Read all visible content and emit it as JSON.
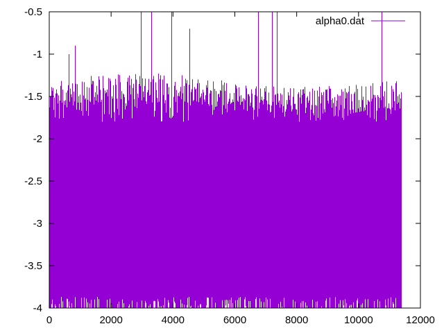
{
  "chart_data": {
    "type": "line",
    "title": "",
    "xlabel": "",
    "ylabel": "",
    "xlim": [
      0,
      12000
    ],
    "ylim": [
      -4,
      -0.5
    ],
    "xticks": [
      0,
      2000,
      4000,
      6000,
      8000,
      10000,
      12000
    ],
    "yticks": [
      -4,
      -3.5,
      -3,
      -2.5,
      -2,
      -1.5,
      -1,
      -0.5
    ],
    "xtick_labels": [
      "0",
      "2000",
      "4000",
      "6000",
      "8000",
      "10000",
      "12000"
    ],
    "ytick_labels": [
      "-4",
      "-3.5",
      "-3",
      "-2.5",
      "-2",
      "-1.5",
      "-1",
      "-0.5"
    ],
    "grid": false,
    "legend_position": "top-right",
    "series": [
      {
        "name": "alpha0.dat",
        "color": "#9400d3",
        "n_points": 11350,
        "x_range": [
          0,
          11350
        ],
        "dense_band": [
          -4,
          -1.8
        ],
        "typical_range": [
          -4,
          -1.3
        ],
        "spikes": [
          {
            "x": 620,
            "y": -1.0
          },
          {
            "x": 830,
            "y": -0.9
          },
          {
            "x": 2950,
            "y": -0.5
          },
          {
            "x": 3300,
            "y": -0.5
          },
          {
            "x": 3950,
            "y": -0.5
          },
          {
            "x": 4540,
            "y": -0.7
          },
          {
            "x": 6750,
            "y": -0.5
          },
          {
            "x": 7200,
            "y": -0.5
          },
          {
            "x": 7350,
            "y": -0.5
          },
          {
            "x": 10750,
            "y": -0.5
          }
        ]
      }
    ]
  }
}
